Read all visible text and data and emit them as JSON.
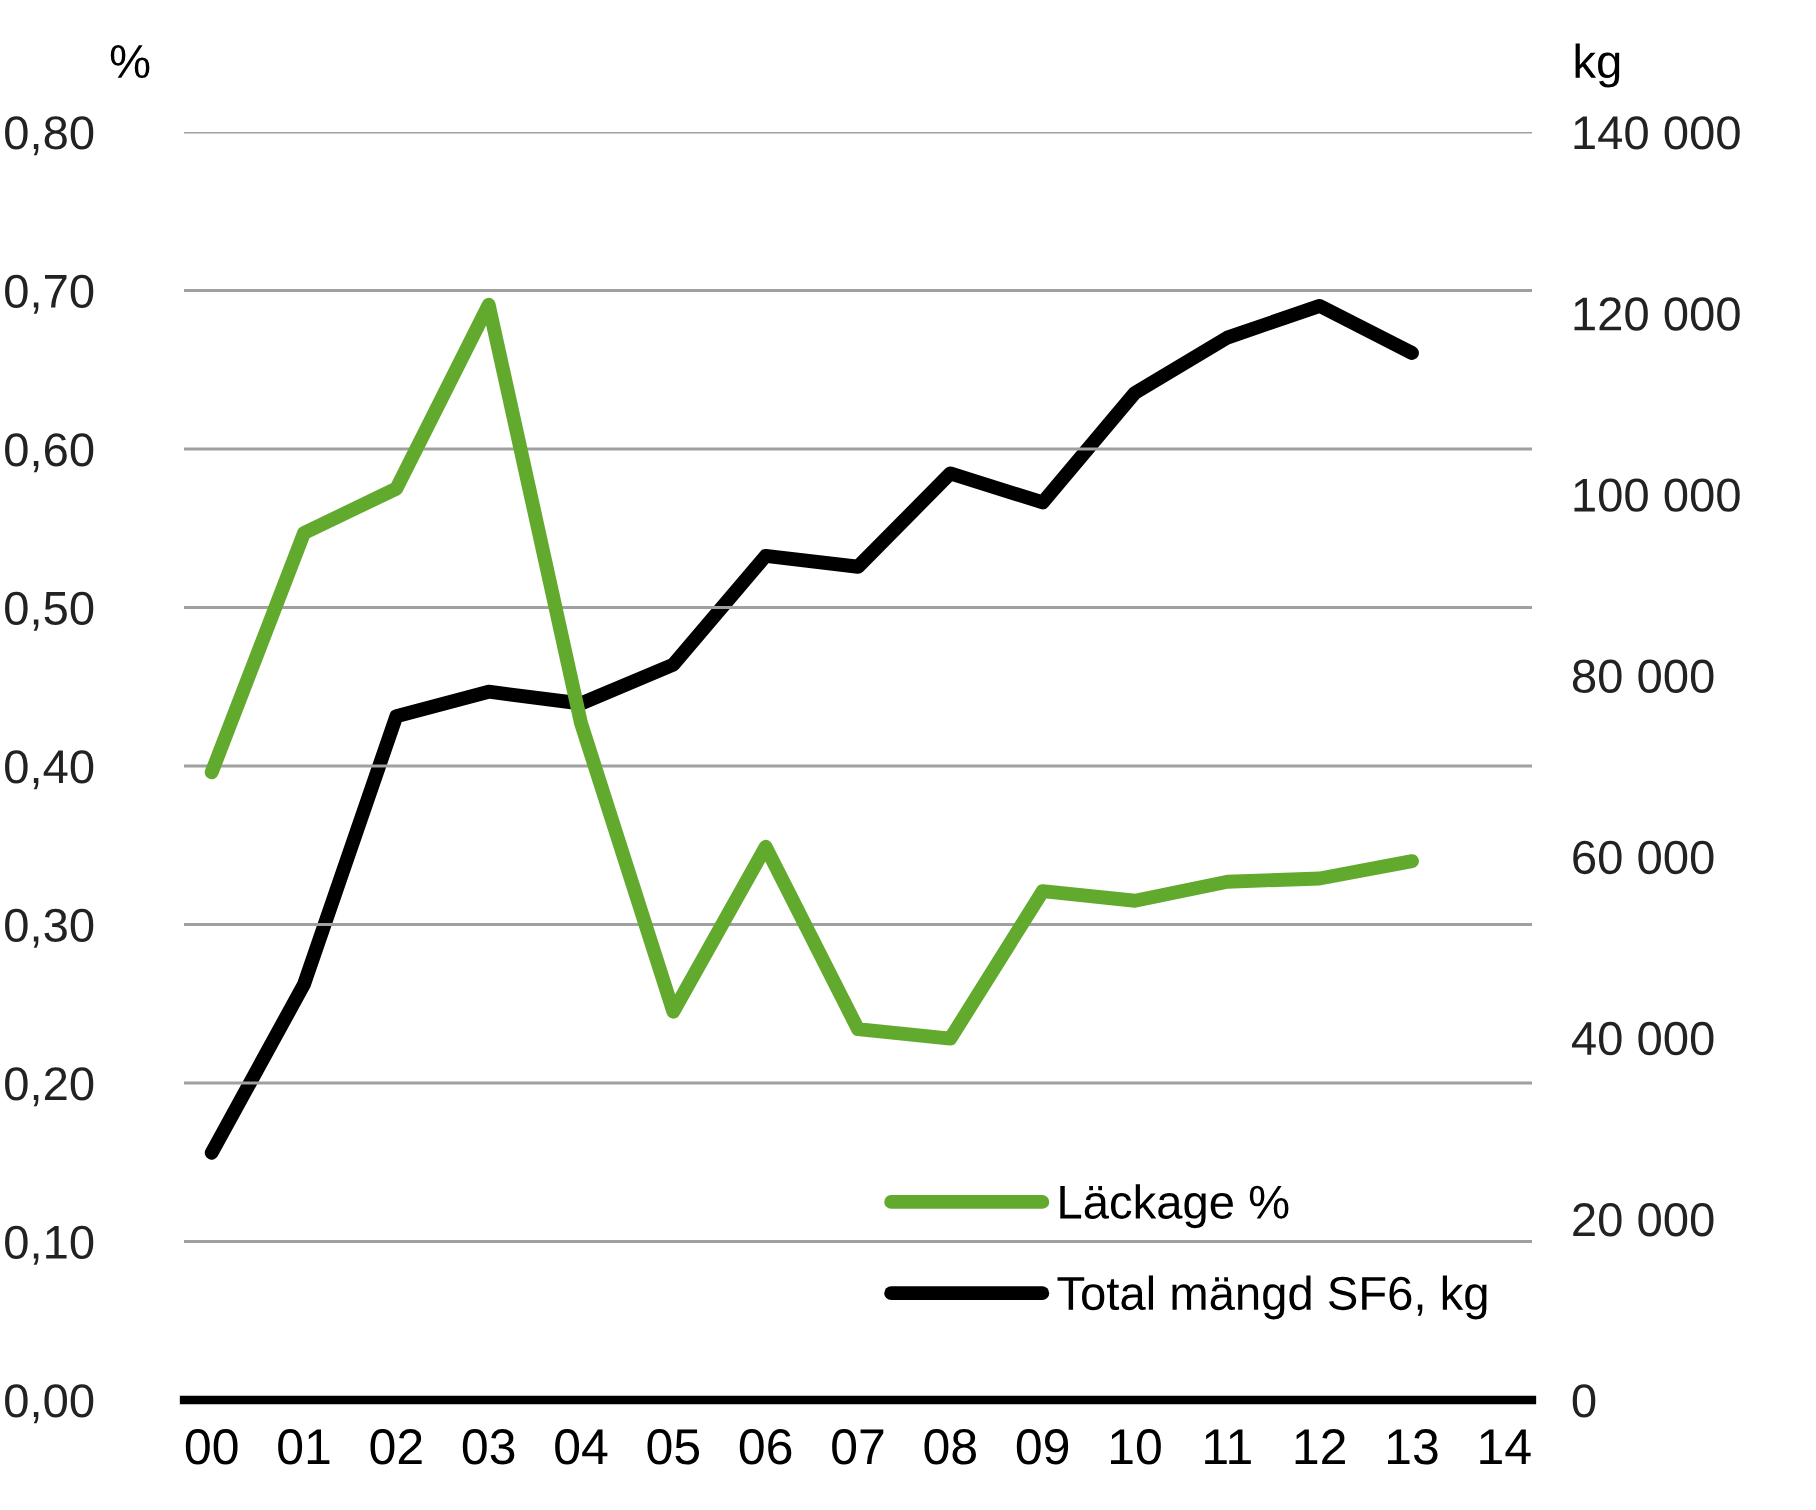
{
  "chart_data": {
    "type": "line",
    "ylabel": "%",
    "y2label": "kg",
    "categories": [
      "00",
      "01",
      "02",
      "03",
      "04",
      "05",
      "06",
      "07",
      "08",
      "09",
      "10",
      "11",
      "12",
      "13",
      "14"
    ],
    "series": [
      {
        "name": "Läckage %",
        "color": "#62aa2d",
        "values": [
          0.396,
          0.547,
          0.575,
          0.691,
          0.427,
          0.245,
          0.349,
          0.234,
          0.228,
          0.321,
          0.315,
          0.327,
          0.329,
          0.34,
          null
        ]
      },
      {
        "name": "Total mängd SF6, kg",
        "color": "#000000",
        "axis": "y2",
        "values": [
          27300,
          45900,
          75500,
          78200,
          76900,
          81200,
          93200,
          92000,
          102300,
          99100,
          111200,
          117300,
          120800,
          115600,
          null
        ]
      }
    ],
    "ylim": [
      0,
      0.8
    ],
    "yticks": [
      {
        "value": 0,
        "label": "0,00"
      },
      {
        "value": 0.1,
        "label": "0,10"
      },
      {
        "value": 0.2,
        "label": "0,20"
      },
      {
        "value": 0.3,
        "label": "0,30"
      },
      {
        "value": 0.4,
        "label": "0,40"
      },
      {
        "value": 0.5,
        "label": "0,50"
      },
      {
        "value": 0.6,
        "label": "0,60"
      },
      {
        "value": 0.7,
        "label": "0,70"
      },
      {
        "value": 0.8,
        "label": "0,80"
      }
    ],
    "y2lim": [
      0,
      140000
    ],
    "y2ticks": [
      0,
      {
        "value": 20000,
        "label": "20 000"
      },
      {
        "value": 40000,
        "label": "40 000"
      },
      {
        "value": 60000,
        "label": "60 000"
      },
      {
        "value": 80000,
        "label": "80 000"
      },
      {
        "value": 100000,
        "label": "100 000"
      },
      {
        "value": 120000,
        "label": "120 000"
      },
      {
        "value": 140000,
        "label": "140 000"
      }
    ],
    "grid": "y",
    "legend": "bottom right",
    "marker": "none",
    "line_style": "solid"
  }
}
